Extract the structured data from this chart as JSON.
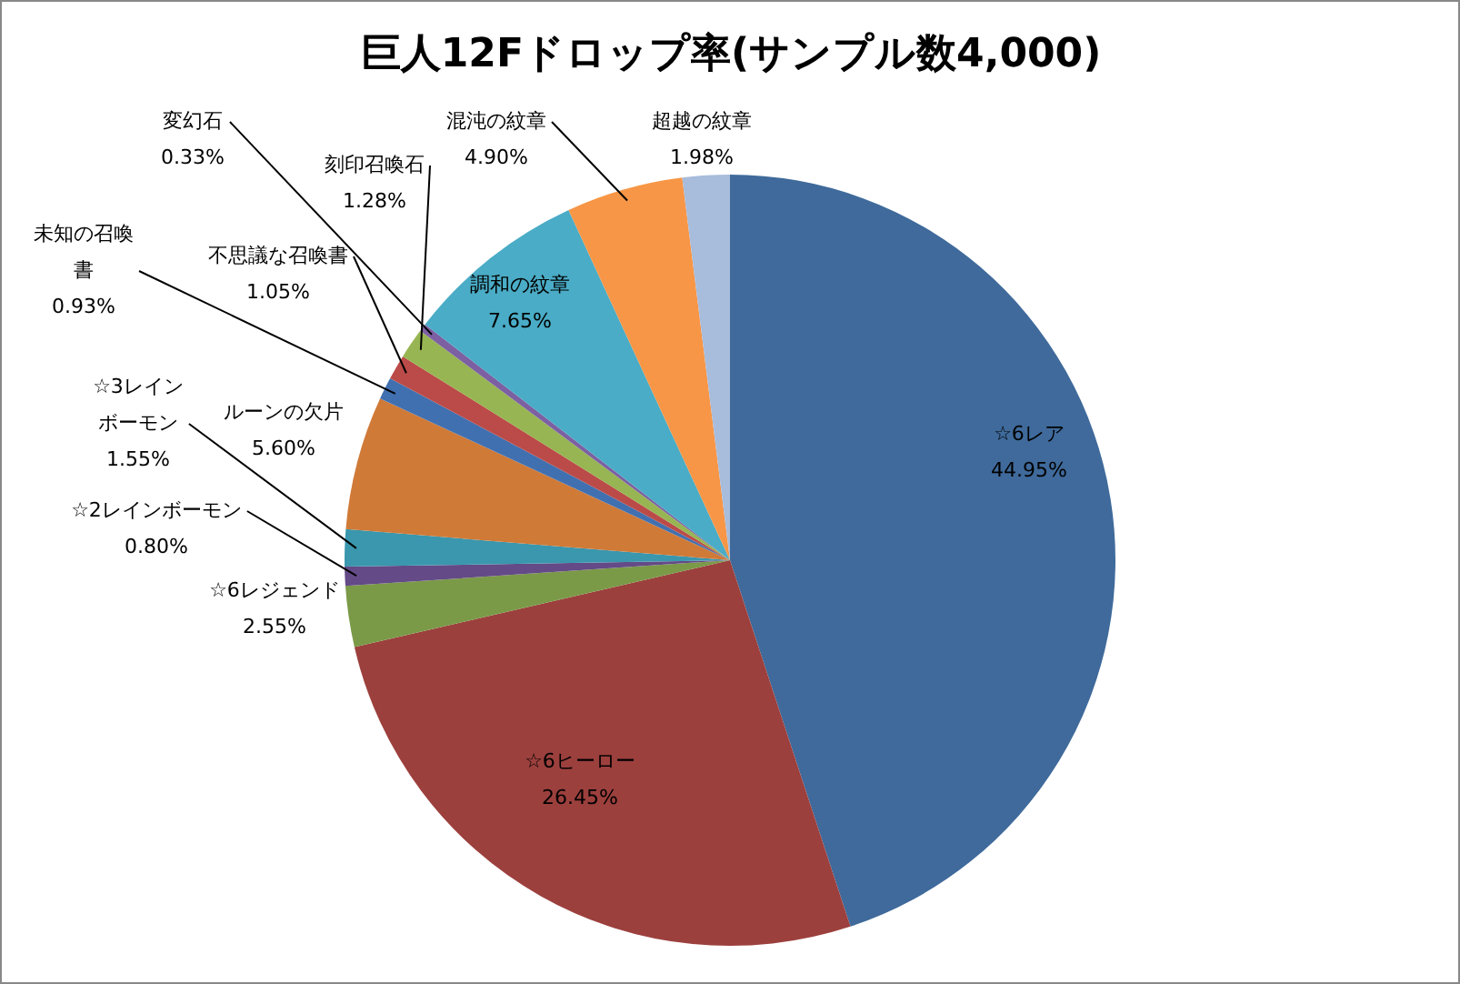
{
  "chart_data": {
    "type": "pie",
    "title": "巨人12Fドロップ率(サンプル数4,000)",
    "categories": [
      "☆6レア",
      "☆6ヒーロー",
      "☆6レジェンド",
      "☆2レインボーモン",
      "☆3レインボーモン",
      "ルーンの欠片",
      "未知の召喚書",
      "不思議な召喚書",
      "刻印召喚石",
      "変幻石",
      "調和の紋章",
      "混沌の紋章",
      "超越の紋章"
    ],
    "values": [
      44.95,
      26.45,
      2.55,
      0.8,
      1.55,
      5.6,
      0.93,
      1.05,
      1.28,
      0.33,
      7.65,
      4.9,
      1.98
    ],
    "value_labels": [
      "44.95%",
      "26.45%",
      "2.55%",
      "0.80%",
      "1.55%",
      "5.60%",
      "0.93%",
      "1.05%",
      "1.28%",
      "0.33%",
      "7.65%",
      "4.90%",
      "1.98%"
    ],
    "colors": [
      "#3f6a9b",
      "#9c403d",
      "#7a9a48",
      "#644a87",
      "#3a97ad",
      "#d07a38",
      "#4170b0",
      "#bb4b48",
      "#97b552",
      "#7c60a2",
      "#4aacc6",
      "#f79646",
      "#a8bcdb"
    ],
    "legend": false
  }
}
